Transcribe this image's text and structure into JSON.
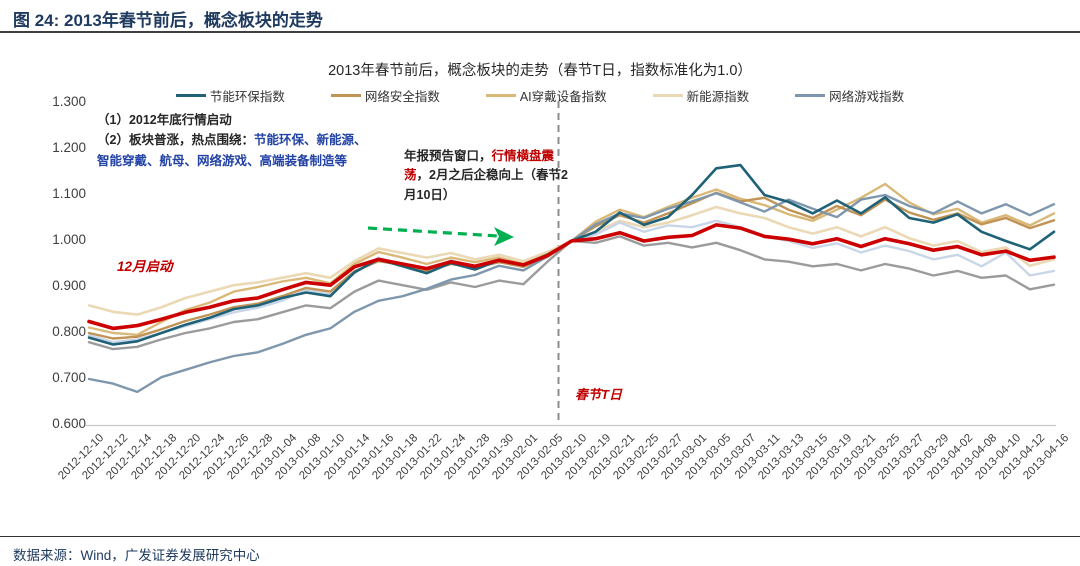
{
  "figure": {
    "title": "图 24:  2013年春节前后，概念板块的走势",
    "source": "数据来源：Wind，广发证券发展研究中心"
  },
  "colors": {
    "title_navy": "#1e3a5f",
    "annotation_blue": "#2343a5",
    "annotation_red": "#c00000",
    "arrow_green": "#00b050",
    "dashed_line_gray": "#8c8c8c",
    "axis_text": "#3f3f3f"
  },
  "chart_data": {
    "type": "line",
    "title": "2013年春节前后，概念板块的走势（春节T日，指数标准化为1.0）",
    "xlabel": "",
    "ylabel": "",
    "ylim": [
      0.6,
      1.3
    ],
    "yticks": [
      "1.300",
      "1.200",
      "1.100",
      "1.000",
      "0.900",
      "0.800",
      "0.700",
      "0.600"
    ],
    "grid": false,
    "legend_position": "top",
    "normalization_note": "春节T日(2013-02-10)所有指数标准化为1.0",
    "spring_festival_date": "2013-02-10",
    "x": [
      "2012-12-10",
      "2012-12-12",
      "2012-12-14",
      "2012-12-18",
      "2012-12-20",
      "2012-12-24",
      "2012-12-26",
      "2012-12-28",
      "2013-01-04",
      "2013-01-08",
      "2013-01-10",
      "2013-01-14",
      "2013-01-16",
      "2013-01-18",
      "2013-01-22",
      "2013-01-24",
      "2013-01-28",
      "2013-01-30",
      "2013-02-01",
      "2013-02-05",
      "2013-02-10",
      "2013-02-19",
      "2013-02-21",
      "2013-02-25",
      "2013-02-27",
      "2013-03-01",
      "2013-03-05",
      "2013-03-07",
      "2013-03-11",
      "2013-03-13",
      "2013-03-15",
      "2013-03-19",
      "2013-03-21",
      "2013-03-25",
      "2013-03-27",
      "2013-03-29",
      "2013-04-02",
      "2013-04-08",
      "2013-04-10",
      "2013-04-12",
      "2013-04-16"
    ],
    "series": [
      {
        "id": "energy-saving-env",
        "name": "节能环保指数",
        "color": "#1f6176",
        "width": 2.6,
        "z": 7,
        "in_legend": true,
        "values": [
          0.79,
          0.775,
          0.782,
          0.8,
          0.818,
          0.833,
          0.852,
          0.86,
          0.876,
          0.888,
          0.88,
          0.932,
          0.96,
          0.945,
          0.93,
          0.952,
          0.938,
          0.958,
          0.948,
          0.97,
          1.0,
          1.02,
          1.062,
          1.035,
          1.052,
          1.1,
          1.158,
          1.165,
          1.1,
          1.085,
          1.06,
          1.088,
          1.06,
          1.095,
          1.05,
          1.04,
          1.058,
          1.02,
          1.0,
          0.982,
          1.02
        ]
      },
      {
        "id": "network-security",
        "name": "网络安全指数",
        "color": "#c19355",
        "width": 2.4,
        "z": 5,
        "in_legend": true,
        "values": [
          0.8,
          0.788,
          0.792,
          0.808,
          0.826,
          0.84,
          0.856,
          0.864,
          0.88,
          0.898,
          0.89,
          0.934,
          0.956,
          0.948,
          0.934,
          0.95,
          0.942,
          0.954,
          0.944,
          0.966,
          1.0,
          1.032,
          1.056,
          1.04,
          1.06,
          1.082,
          1.105,
          1.086,
          1.094,
          1.068,
          1.05,
          1.076,
          1.056,
          1.09,
          1.062,
          1.046,
          1.06,
          1.036,
          1.05,
          1.028,
          1.045
        ]
      },
      {
        "id": "ai-wearable",
        "name": "AI穿戴设备指数",
        "color": "#d9b878",
        "width": 2.4,
        "z": 3,
        "in_legend": true,
        "values": [
          0.812,
          0.8,
          0.796,
          0.824,
          0.85,
          0.866,
          0.89,
          0.9,
          0.912,
          0.92,
          0.908,
          0.95,
          0.976,
          0.964,
          0.95,
          0.964,
          0.954,
          0.964,
          0.95,
          0.972,
          1.0,
          1.042,
          1.068,
          1.052,
          1.074,
          1.094,
          1.112,
          1.092,
          1.078,
          1.058,
          1.044,
          1.068,
          1.094,
          1.124,
          1.084,
          1.058,
          1.07,
          1.04,
          1.056,
          1.034,
          1.06
        ]
      },
      {
        "id": "new-energy",
        "name": "新能源指数",
        "color": "#ead9b4",
        "width": 2.6,
        "z": 1,
        "in_legend": true,
        "values": [
          0.86,
          0.846,
          0.84,
          0.856,
          0.876,
          0.89,
          0.904,
          0.91,
          0.92,
          0.93,
          0.92,
          0.956,
          0.984,
          0.974,
          0.964,
          0.974,
          0.96,
          0.97,
          0.956,
          0.976,
          1.0,
          1.02,
          1.044,
          1.03,
          1.04,
          1.056,
          1.074,
          1.06,
          1.05,
          1.03,
          1.016,
          1.03,
          1.01,
          1.03,
          1.006,
          0.99,
          1.0,
          0.976,
          0.986,
          0.946,
          0.96
        ]
      },
      {
        "id": "online-games",
        "name": "网络游戏指数",
        "color": "#7e97ad",
        "width": 2.4,
        "z": 6,
        "in_legend": true,
        "values": [
          0.7,
          0.69,
          0.672,
          0.704,
          0.72,
          0.736,
          0.75,
          0.758,
          0.776,
          0.796,
          0.81,
          0.846,
          0.87,
          0.88,
          0.896,
          0.916,
          0.926,
          0.946,
          0.936,
          0.966,
          1.0,
          1.036,
          1.06,
          1.05,
          1.07,
          1.086,
          1.104,
          1.084,
          1.064,
          1.09,
          1.07,
          1.052,
          1.09,
          1.1,
          1.076,
          1.06,
          1.086,
          1.06,
          1.08,
          1.056,
          1.08
        ]
      },
      {
        "id": "red-benchmark-unlabeled",
        "name": "unlabeled-red-line",
        "color": "#cc0000",
        "width": 3.6,
        "z": 8,
        "in_legend": false,
        "values": [
          0.825,
          0.81,
          0.816,
          0.83,
          0.845,
          0.856,
          0.87,
          0.876,
          0.894,
          0.91,
          0.904,
          0.944,
          0.96,
          0.95,
          0.94,
          0.955,
          0.945,
          0.958,
          0.948,
          0.968,
          1.0,
          1.005,
          1.018,
          1.0,
          1.008,
          1.012,
          1.035,
          1.028,
          1.01,
          1.004,
          0.994,
          1.005,
          0.988,
          1.005,
          0.994,
          0.98,
          0.988,
          0.97,
          0.978,
          0.958,
          0.965
        ]
      },
      {
        "id": "gray-unlabeled",
        "name": "unlabeled-gray-line",
        "color": "#9b9b9b",
        "width": 2.4,
        "z": 4,
        "in_legend": false,
        "values": [
          0.78,
          0.765,
          0.77,
          0.786,
          0.8,
          0.81,
          0.824,
          0.83,
          0.845,
          0.86,
          0.854,
          0.89,
          0.914,
          0.904,
          0.894,
          0.91,
          0.9,
          0.914,
          0.906,
          0.955,
          1.0,
          0.996,
          1.01,
          0.99,
          0.996,
          0.986,
          0.996,
          0.98,
          0.96,
          0.955,
          0.945,
          0.95,
          0.936,
          0.95,
          0.94,
          0.925,
          0.935,
          0.92,
          0.925,
          0.895,
          0.905
        ]
      },
      {
        "id": "light-blue-unlabeled",
        "name": "unlabeled-light-blue-line",
        "color": "#c9d6e8",
        "width": 2.4,
        "z": 2,
        "in_legend": false,
        "values": [
          0.795,
          0.78,
          0.786,
          0.8,
          0.815,
          0.83,
          0.845,
          0.855,
          0.87,
          0.894,
          0.884,
          0.93,
          0.964,
          0.948,
          0.934,
          0.958,
          0.944,
          0.958,
          0.944,
          0.97,
          1.0,
          1.014,
          1.04,
          1.02,
          1.034,
          1.03,
          1.044,
          1.03,
          1.01,
          1.0,
          0.985,
          0.995,
          0.975,
          0.99,
          0.978,
          0.96,
          0.97,
          0.945,
          0.975,
          0.925,
          0.935
        ]
      }
    ],
    "annotations": {
      "left_line1": "（1）2012年底行情启动",
      "left_line2_prefix": "（2）板块普涨，热点围绕：",
      "left_line2_highlight": "节能环保、新能源、智能穿戴、航母、网络游戏、高端装备制造等",
      "mid_prefix": "年报预告窗口，",
      "mid_highlight": "行情横盘震荡",
      "mid_suffix": "，2月之后企稳向上（春节2月10日）",
      "december_label": "12月启动",
      "spring_festival_label": "春节T日"
    }
  }
}
